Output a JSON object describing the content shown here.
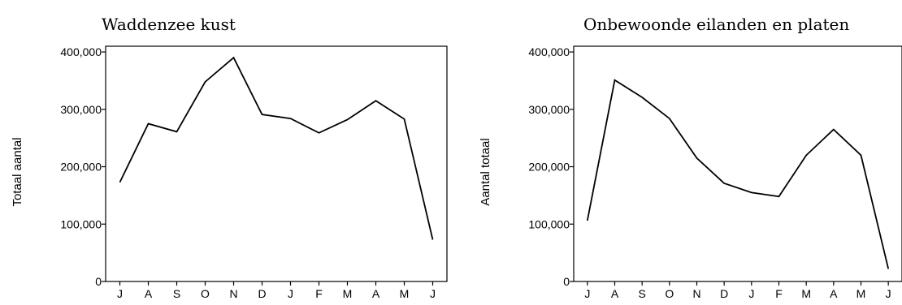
{
  "chart_data": [
    {
      "type": "line",
      "title": "Waddenzee kust",
      "xlabel": "",
      "ylabel": "Totaal aantal",
      "categories": [
        "J",
        "A",
        "S",
        "O",
        "N",
        "D",
        "J",
        "F",
        "M",
        "A",
        "M",
        "J"
      ],
      "values": [
        173000,
        275000,
        261000,
        348000,
        390000,
        291000,
        284000,
        259000,
        282000,
        315000,
        283000,
        73000
      ],
      "ylim": [
        0,
        410000
      ],
      "yticks": [
        0,
        100000,
        200000,
        300000,
        400000
      ],
      "ytick_labels": [
        "0",
        "100,000",
        "200,000",
        "300,000",
        "400,000"
      ],
      "grid": false,
      "legend": "none"
    },
    {
      "type": "line",
      "title": "Onbewoonde eilanden en platen",
      "xlabel": "",
      "ylabel": "Aantal totaal",
      "categories": [
        "J",
        "A",
        "S",
        "O",
        "N",
        "D",
        "J",
        "F",
        "M",
        "A",
        "M",
        "J"
      ],
      "values": [
        106000,
        351000,
        321000,
        284000,
        215000,
        171000,
        155000,
        148000,
        220000,
        265000,
        220000,
        22000
      ],
      "ylim": [
        0,
        410000
      ],
      "yticks": [
        0,
        100000,
        200000,
        300000,
        400000
      ],
      "ytick_labels": [
        "0",
        "100,000",
        "200,000",
        "300,000",
        "400,000"
      ],
      "grid": false,
      "legend": "none"
    }
  ]
}
